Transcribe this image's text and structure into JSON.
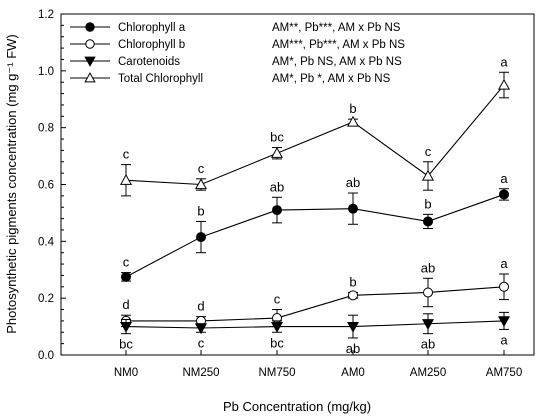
{
  "chart_data": {
    "type": "line",
    "title": "",
    "xlabel": "Pb Concentration (mg/kg)",
    "ylabel": "Photosynthetic pigments concentration (mg g⁻¹ FW)",
    "categories": [
      "NM0",
      "NM250",
      "NM750",
      "AM0",
      "AM250",
      "AM750"
    ],
    "ylim": [
      0.0,
      1.2
    ],
    "yticks": [
      "0.0",
      "0.2",
      "0.4",
      "0.6",
      "0.8",
      "1.0",
      "1.2"
    ],
    "grid": false,
    "legend_placement": "top-left",
    "series": [
      {
        "name": "Chlorophyll a",
        "marker": "filled-circle",
        "values": [
          0.275,
          0.415,
          0.51,
          0.515,
          0.47,
          0.565
        ],
        "errors": [
          0.015,
          0.055,
          0.045,
          0.055,
          0.025,
          0.02
        ],
        "letters": [
          "c",
          "b",
          "ab",
          "ab",
          "b",
          "a"
        ],
        "letter_position": "above",
        "stats": "AM**,   Pb***, AM x Pb NS"
      },
      {
        "name": "Chlorophyll b",
        "marker": "open-circle",
        "values": [
          0.12,
          0.12,
          0.13,
          0.21,
          0.22,
          0.24
        ],
        "errors": [
          0.02,
          0.015,
          0.03,
          0.01,
          0.05,
          0.045
        ],
        "letters": [
          "d",
          "d",
          "c",
          "b",
          "ab",
          "a"
        ],
        "letter_position": "above",
        "stats": "AM***,   Pb***, AM x Pb NS"
      },
      {
        "name": "Carotenoids",
        "marker": "filled-triangle-down",
        "values": [
          0.1,
          0.095,
          0.1,
          0.1,
          0.11,
          0.12
        ],
        "errors": [
          0.025,
          0.015,
          0.02,
          0.04,
          0.035,
          0.03
        ],
        "letters": [
          "bc",
          "c",
          "bc",
          "ab",
          "ab",
          "a"
        ],
        "letter_position": "below",
        "stats": "AM*,   Pb NS, AM x Pb NS"
      },
      {
        "name": "Total Chlorophyll",
        "marker": "open-triangle-up",
        "values": [
          0.615,
          0.6,
          0.71,
          0.82,
          0.63,
          0.95
        ],
        "errors": [
          0.055,
          0.02,
          0.02,
          0.01,
          0.05,
          0.045
        ],
        "letters": [
          "c",
          "c",
          "bc",
          "b",
          "c",
          "a"
        ],
        "letter_position": "above",
        "stats": "AM*,   Pb *, AM x Pb NS"
      }
    ]
  }
}
